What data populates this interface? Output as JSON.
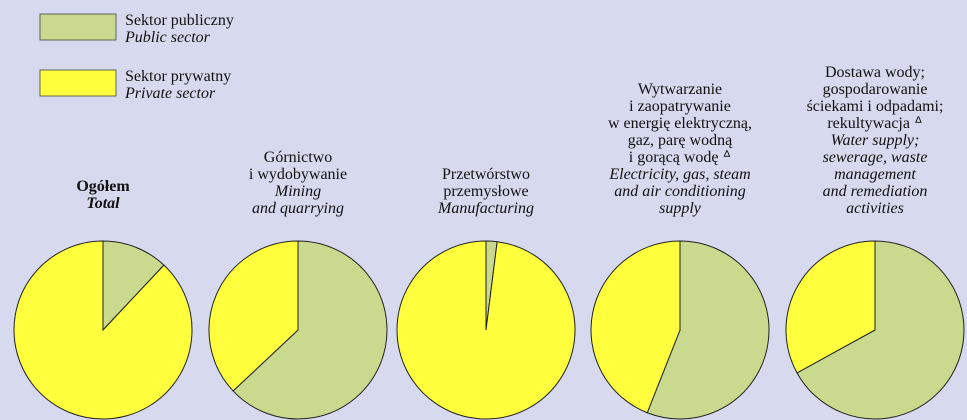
{
  "chart_data": {
    "type": "pie",
    "labels": [
      {
        "pl": [
          "Ogółem"
        ],
        "en": [
          "Total"
        ]
      },
      {
        "pl": [
          "Górnictwo",
          "i wydobywanie"
        ],
        "en": [
          "Mining",
          "and quarrying"
        ]
      },
      {
        "pl": [
          "Przetwórstwo",
          "przemysłowe"
        ],
        "en": [
          "Manufacturing"
        ]
      },
      {
        "pl": [
          "Wytwarzanie",
          "i zaopatrywanie",
          "w energię elektryczną,",
          "gaz, parę wodną",
          "i gorącą wodę ᐞ"
        ],
        "en": [
          "Electricity, gas, steam",
          "and air conditioning",
          "supply"
        ]
      },
      {
        "pl": [
          "Dostawa wody;",
          "gospodarowanie",
          "ściekami i odpadami;",
          "rekultywacja ᐞ"
        ],
        "en": [
          "Water supply;",
          "sewerage, waste",
          "management",
          "and remediation",
          "activities"
        ]
      }
    ],
    "series": [
      {
        "name": "Sektor publiczny",
        "name_en": "Public sector",
        "color": "#c9d98d",
        "values": [
          12,
          63,
          2,
          56,
          67
        ]
      },
      {
        "name": "Sektor prywatny",
        "name_en": "Private sector",
        "color": "#ffff3d",
        "values": [
          88,
          37,
          98,
          44,
          33
        ]
      }
    ]
  }
}
